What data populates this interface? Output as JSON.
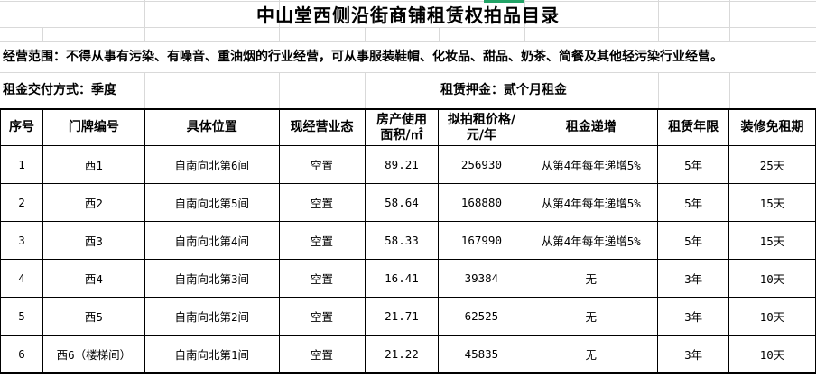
{
  "title": "中山堂西侧沿街商铺租赁权拍品目录",
  "scope": "经营范围：不得从事有污染、有噪音、重油烟的行业经营，可从事服装鞋帽、化妆品、甜品、奶茶、简餐及其他轻污染行业经营。",
  "payment": "租金交付方式：季度",
  "deposit": "租赁押金：贰个月租金",
  "colors": {
    "selection": "#21a366",
    "gridline": "#d9d9d9"
  },
  "table": {
    "headers": [
      "序号",
      "门牌编号",
      "具体位置",
      "现经营业态",
      "房产使用面积/㎡",
      "拟拍租价格/元/年",
      "租金递增",
      "租赁年限",
      "装修免租期"
    ],
    "rows": [
      [
        "1",
        "西1",
        "自南向北第6间",
        "空置",
        "89.21",
        "256930",
        "从第4年每年递增5%",
        "5年",
        "25天"
      ],
      [
        "2",
        "西2",
        "自南向北第5间",
        "空置",
        "58.64",
        "168880",
        "从第4年每年递增5%",
        "5年",
        "15天"
      ],
      [
        "3",
        "西3",
        "自南向北第4间",
        "空置",
        "58.33",
        "167990",
        "从第4年每年递增5%",
        "5年",
        "15天"
      ],
      [
        "4",
        "西4",
        "自南向北第3间",
        "空置",
        "16.41",
        "39384",
        "无",
        "3年",
        "10天"
      ],
      [
        "5",
        "西5",
        "自南向北第2间",
        "空置",
        "21.71",
        "62525",
        "无",
        "3年",
        "10天"
      ],
      [
        "6",
        "西6（楼梯间）",
        "自南向北第1间",
        "空置",
        "21.22",
        "45835",
        "无",
        "3年",
        "10天"
      ]
    ]
  }
}
